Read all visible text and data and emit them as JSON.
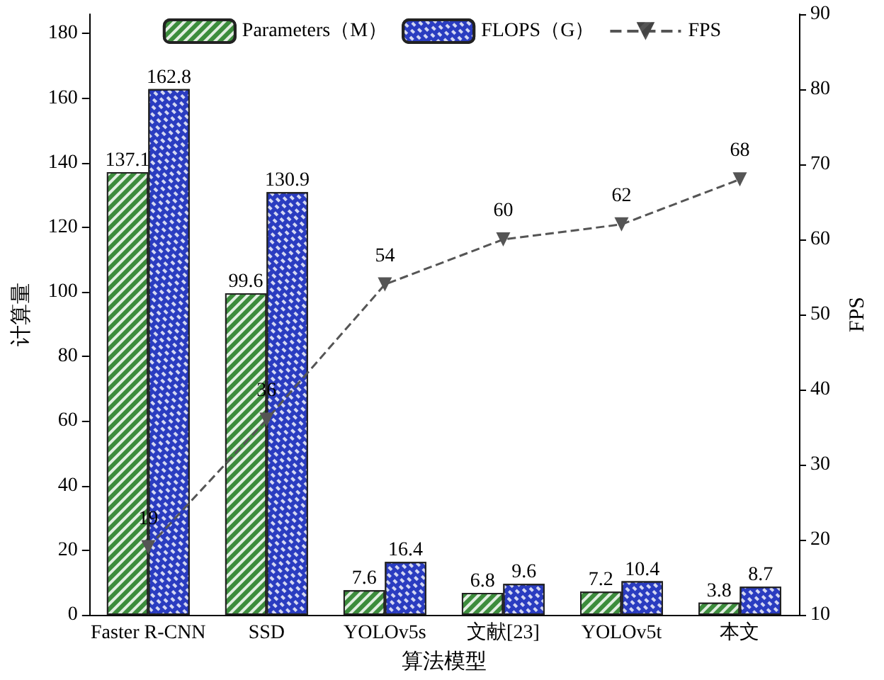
{
  "chart_data": {
    "type": "bar",
    "categories": [
      "Faster R-CNN",
      "SSD",
      "YOLOv5s",
      "文献[23]",
      "YOLOv5t",
      "本文"
    ],
    "series": [
      {
        "name": "Parameters（M）",
        "color": "#3c8c3c",
        "values": [
          137.1,
          99.6,
          7.6,
          6.8,
          7.2,
          3.8
        ]
      },
      {
        "name": "FLOPS（G）",
        "color": "#2a3cc0",
        "values": [
          162.8,
          130.9,
          16.4,
          9.6,
          10.4,
          8.7
        ]
      },
      {
        "name": "FPS",
        "type": "line",
        "axis": "y2",
        "color": "#555555",
        "marker": "triangle",
        "line_style": "dashed",
        "values": [
          19,
          36,
          54,
          60,
          62,
          68
        ]
      }
    ],
    "xlabel": "算法模型",
    "ylabel": "计算量",
    "y2label": "FPS",
    "ylim": [
      0,
      186
    ],
    "yticks": [
      0,
      20,
      40,
      60,
      80,
      100,
      120,
      140,
      160,
      180
    ],
    "y2lim": [
      10,
      90
    ],
    "y2ticks": [
      10,
      20,
      30,
      40,
      50,
      60,
      70,
      80,
      90
    ],
    "data_labels": true,
    "grid": false,
    "legend": "top"
  }
}
